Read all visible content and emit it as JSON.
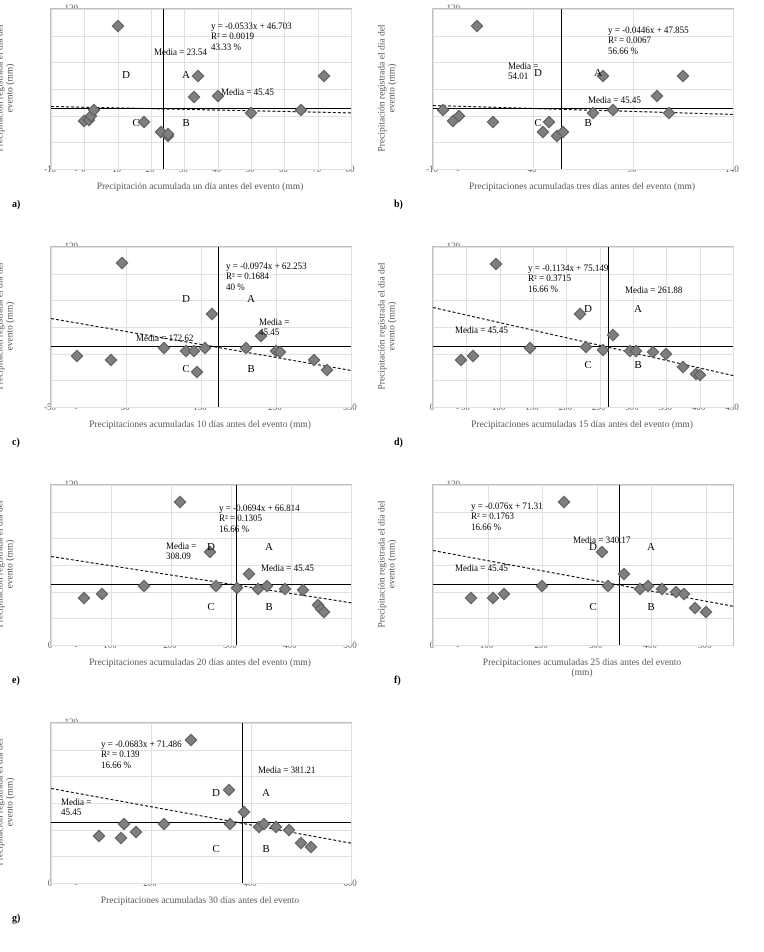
{
  "global": {
    "ylabel": "Precipitación registrada el día del\nevento (mm)",
    "ylim": [
      0,
      120
    ],
    "ytick_step": 20,
    "media_y_value": 45.45,
    "marker_color": "#7f7f7f",
    "grid_color": "#e0e0e0",
    "border_color": "#bfbfbf",
    "background_color": "#ffffff",
    "quad_labels": {
      "A": "A",
      "B": "B",
      "C": "C",
      "D": "D"
    },
    "font_family": "Times New Roman",
    "label_fontsize": 9.5,
    "ann_fontsize": 9
  },
  "panels": [
    {
      "letter": "a)",
      "xlabel": "Precipitación acumulada un día antes del evento (mm)",
      "xlim": [
        -10,
        80
      ],
      "xtick_start": -10,
      "xtick_step": 10,
      "media_x": 23.54,
      "eq": "y = -0.0533x + 46.703",
      "r2": "R² = 0.0019",
      "pct": "43.33 %",
      "media_x_label": "Media = 23.54",
      "media_y_label": "Media = 45.45",
      "trend": {
        "m": -0.0533,
        "b": 46.703
      },
      "points": [
        [
          0,
          36
        ],
        [
          1.5,
          37
        ],
        [
          2,
          40
        ],
        [
          3,
          44
        ],
        [
          10,
          107
        ],
        [
          18,
          35
        ],
        [
          23,
          28
        ],
        [
          25,
          25
        ],
        [
          25,
          26
        ],
        [
          33,
          54
        ],
        [
          34,
          70
        ],
        [
          40,
          55
        ],
        [
          50,
          42
        ],
        [
          65,
          44
        ],
        [
          72,
          70
        ]
      ],
      "ann_pos": {
        "eq": [
          160,
          12
        ],
        "media_x": [
          103,
          38
        ],
        "media_y": [
          170,
          78
        ],
        "D": [
          75,
          66
        ],
        "A": [
          135,
          66
        ],
        "C": [
          85,
          114
        ],
        "B": [
          135,
          114
        ]
      }
    },
    {
      "letter": "b)",
      "xlabel": "Precipitaciones acumuladas tres días antes del evento (mm)",
      "xlim": [
        -10,
        140
      ],
      "xtick_start": -10,
      "xtick_step": 50,
      "media_x": 54.01,
      "eq": "y = -0.0446x + 47.855",
      "r2": "R² = 0.0067",
      "pct": "56.66 %",
      "media_x_label": "Media =\n54.01",
      "media_y_label": "Media = 45.45",
      "trend": {
        "m": -0.0446,
        "b": 47.855
      },
      "points": [
        [
          -5,
          44
        ],
        [
          0,
          36
        ],
        [
          3,
          40
        ],
        [
          12,
          107
        ],
        [
          20,
          35
        ],
        [
          45,
          28
        ],
        [
          48,
          35
        ],
        [
          52,
          25
        ],
        [
          55,
          28
        ],
        [
          70,
          42
        ],
        [
          75,
          70
        ],
        [
          80,
          44
        ],
        [
          102,
          55
        ],
        [
          108,
          42
        ],
        [
          115,
          70
        ]
      ],
      "ann_pos": {
        "eq": [
          175,
          16
        ],
        "media_x": [
          75,
          52
        ],
        "media_y": [
          155,
          86
        ],
        "D": [
          105,
          64
        ],
        "A": [
          165,
          64
        ],
        "C": [
          105,
          114
        ],
        "B": [
          155,
          114
        ]
      }
    },
    {
      "letter": "c)",
      "xlabel": "Precipitaciones acumuladas 10 días antes del evento (mm)",
      "xlim": [
        -50,
        350
      ],
      "xtick_start": -50,
      "xtick_step": 100,
      "media_x": 172.62,
      "eq": "y = -0.0974x + 62.253",
      "r2": "R² = 0.1684",
      "pct": "40 %",
      "media_x_label": "Media = 172.62",
      "media_y_label": "Media =\n45.45",
      "trend": {
        "m": -0.0974,
        "b": 62.253
      },
      "points": [
        [
          -15,
          38
        ],
        [
          30,
          35
        ],
        [
          45,
          108
        ],
        [
          100,
          44
        ],
        [
          130,
          42
        ],
        [
          140,
          42
        ],
        [
          145,
          26
        ],
        [
          155,
          44
        ],
        [
          165,
          70
        ],
        [
          210,
          44
        ],
        [
          230,
          53
        ],
        [
          250,
          42
        ],
        [
          255,
          41
        ],
        [
          300,
          35
        ],
        [
          318,
          28
        ]
      ],
      "ann_pos": {
        "eq": [
          175,
          14
        ],
        "media_x": [
          85,
          86
        ],
        "media_y": [
          208,
          70
        ],
        "D": [
          135,
          52
        ],
        "A": [
          200,
          52
        ],
        "C": [
          135,
          122
        ],
        "B": [
          200,
          122
        ]
      }
    },
    {
      "letter": "d)",
      "xlabel": "Precipitaciones acumuladas 15 días antes del evento (mm)",
      "xlim": [
        0,
        450
      ],
      "xtick_start": 0,
      "xtick_step": 50,
      "media_x": 261.88,
      "eq": "y = -0.1134x + 75.149",
      "r2": "R² = 0.3715",
      "pct": "16.66 %",
      "media_x_label": "Media = 261.88",
      "media_y_label": "Media = 45.45",
      "trend": {
        "m": -0.1134,
        "b": 75.149
      },
      "points": [
        [
          42,
          35
        ],
        [
          60,
          38
        ],
        [
          95,
          107
        ],
        [
          145,
          44
        ],
        [
          220,
          70
        ],
        [
          230,
          45
        ],
        [
          255,
          43
        ],
        [
          270,
          54
        ],
        [
          295,
          42
        ],
        [
          305,
          42
        ],
        [
          330,
          41
        ],
        [
          350,
          40
        ],
        [
          375,
          30
        ],
        [
          395,
          25
        ],
        [
          400,
          24
        ]
      ],
      "ann_pos": {
        "eq": [
          95,
          16
        ],
        "media_x": [
          192,
          38
        ],
        "media_y": [
          22,
          78
        ],
        "D": [
          155,
          62
        ],
        "A": [
          205,
          62
        ],
        "C": [
          155,
          118
        ],
        "B": [
          205,
          118
        ]
      }
    },
    {
      "letter": "e)",
      "xlabel": "Precipitaciones acumuladas 20 días antes del evento (mm)",
      "xlim": [
        0,
        500
      ],
      "xtick_start": 0,
      "xtick_step": 100,
      "media_x": 308.09,
      "eq": "y = -0.0694x + 66.814",
      "r2": "R² = 0.1305",
      "pct": "16.66 %",
      "media_x_label": "Media =\n308.09",
      "media_y_label": "Media = 45.45",
      "trend": {
        "m": -0.0694,
        "b": 66.814
      },
      "points": [
        [
          55,
          35
        ],
        [
          85,
          38
        ],
        [
          155,
          44
        ],
        [
          215,
          107
        ],
        [
          265,
          70
        ],
        [
          275,
          44
        ],
        [
          310,
          43
        ],
        [
          330,
          53
        ],
        [
          345,
          42
        ],
        [
          360,
          44
        ],
        [
          390,
          42
        ],
        [
          420,
          41
        ],
        [
          445,
          30
        ],
        [
          450,
          27
        ],
        [
          455,
          25
        ]
      ],
      "ann_pos": {
        "eq": [
          168,
          18
        ],
        "media_x": [
          115,
          56
        ],
        "media_y": [
          210,
          78
        ],
        "D": [
          160,
          62
        ],
        "A": [
          218,
          62
        ],
        "C": [
          160,
          122
        ],
        "B": [
          218,
          122
        ]
      }
    },
    {
      "letter": "f)",
      "xlabel": "Precipitaciones acumuladas 25 días antes del evento\n(mm)",
      "xlim": [
        0,
        550
      ],
      "xtick_start": 0,
      "xtick_step": 100,
      "media_x": 340.17,
      "eq": "y = -0.076x + 71.31",
      "r2": "R² = 0.1763",
      "pct": "16.66 %",
      "media_x_label": "Media = 340.17",
      "media_y_label": "Media = 45.45",
      "trend": {
        "m": -0.076,
        "b": 71.31
      },
      "points": [
        [
          70,
          35
        ],
        [
          110,
          35
        ],
        [
          130,
          38
        ],
        [
          200,
          44
        ],
        [
          240,
          107
        ],
        [
          310,
          70
        ],
        [
          320,
          44
        ],
        [
          350,
          53
        ],
        [
          380,
          42
        ],
        [
          395,
          44
        ],
        [
          420,
          42
        ],
        [
          445,
          40
        ],
        [
          460,
          38
        ],
        [
          480,
          28
        ],
        [
          500,
          25
        ]
      ],
      "ann_pos": {
        "eq": [
          38,
          16
        ],
        "media_x": [
          140,
          50
        ],
        "media_y": [
          22,
          78
        ],
        "D": [
          160,
          62
        ],
        "A": [
          218,
          62
        ],
        "C": [
          160,
          122
        ],
        "B": [
          218,
          122
        ]
      }
    },
    {
      "letter": "g)",
      "xlabel": "Precipitaciones acumuladas 30 días antes del evento",
      "xlim": [
        0,
        600
      ],
      "xtick_start": 0,
      "xtick_step": 200,
      "media_x": 381.21,
      "eq": "y = -0.0683x + 71.486",
      "r2": "R² = 0.139",
      "pct": "16.66 %",
      "media_x_label": "Media = 381.21",
      "media_y_label": "Media =\n45.45",
      "trend": {
        "m": -0.0683,
        "b": 71.486
      },
      "points": [
        [
          95,
          35
        ],
        [
          140,
          34
        ],
        [
          145,
          44
        ],
        [
          170,
          38
        ],
        [
          225,
          44
        ],
        [
          280,
          107
        ],
        [
          355,
          70
        ],
        [
          358,
          44
        ],
        [
          385,
          53
        ],
        [
          415,
          42
        ],
        [
          425,
          44
        ],
        [
          450,
          42
        ],
        [
          475,
          40
        ],
        [
          500,
          30
        ],
        [
          520,
          27
        ]
      ],
      "ann_pos": {
        "eq": [
          50,
          16
        ],
        "media_x": [
          207,
          42
        ],
        "media_y": [
          10,
          74
        ],
        "D": [
          165,
          70
        ],
        "A": [
          215,
          70
        ],
        "C": [
          165,
          126
        ],
        "B": [
          215,
          126
        ]
      }
    }
  ]
}
